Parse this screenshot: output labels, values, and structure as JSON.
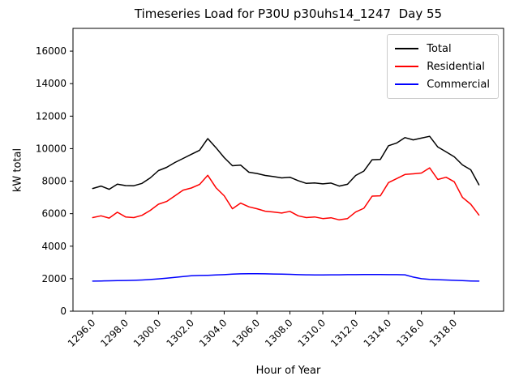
{
  "chart_data": {
    "type": "line",
    "title": "Timeseries Load for P30U p30uhs14_1247  Day 55",
    "xlabel": "Hour of Year",
    "ylabel": "kW total",
    "grid": false,
    "legend_position": "upper-right",
    "xlim": [
      1294.8,
      1321.0
    ],
    "ylim": [
      0,
      17400
    ],
    "yticks": [
      0,
      2000,
      4000,
      6000,
      8000,
      10000,
      12000,
      14000,
      16000
    ],
    "xtick_values": [
      1296,
      1298,
      1300,
      1302,
      1304,
      1306,
      1308,
      1310,
      1312,
      1314,
      1316,
      1318
    ],
    "xtick_labels": [
      "1296.0",
      "1298.0",
      "1300.0",
      "1302.0",
      "1304.0",
      "1306.0",
      "1308.0",
      "1310.0",
      "1312.0",
      "1314.0",
      "1316.0",
      "1318.0"
    ],
    "x": [
      1296.0,
      1296.5,
      1297.0,
      1297.5,
      1298.0,
      1298.5,
      1299.0,
      1299.5,
      1300.0,
      1300.5,
      1301.0,
      1301.5,
      1302.0,
      1302.5,
      1303.0,
      1303.5,
      1304.0,
      1304.5,
      1305.0,
      1305.5,
      1306.0,
      1306.5,
      1307.0,
      1307.5,
      1308.0,
      1308.5,
      1309.0,
      1309.5,
      1310.0,
      1310.5,
      1311.0,
      1311.5,
      1312.0,
      1312.5,
      1313.0,
      1313.5,
      1314.0,
      1314.5,
      1315.0,
      1315.5,
      1316.0,
      1316.5,
      1317.0,
      1317.5,
      1318.0,
      1318.5,
      1319.0,
      1319.5
    ],
    "series": [
      {
        "name": "Total",
        "color": "#000000",
        "values": [
          7550,
          7700,
          7500,
          7820,
          7730,
          7720,
          7860,
          8200,
          8650,
          8850,
          9150,
          9400,
          9650,
          9900,
          10620,
          10060,
          9450,
          8950,
          8990,
          8550,
          8470,
          8350,
          8280,
          8200,
          8240,
          8030,
          7860,
          7890,
          7830,
          7880,
          7700,
          7810,
          8350,
          8620,
          9320,
          9340,
          10180,
          10350,
          10680,
          10540,
          10650,
          10760,
          10100,
          9800,
          9500,
          9000,
          8700,
          7780
        ]
      },
      {
        "name": "Residential",
        "color": "#ff0000",
        "values": [
          5760,
          5870,
          5730,
          6090,
          5800,
          5760,
          5900,
          6200,
          6580,
          6750,
          7100,
          7450,
          7580,
          7800,
          8360,
          7600,
          7100,
          6300,
          6650,
          6420,
          6300,
          6150,
          6100,
          6040,
          6140,
          5870,
          5760,
          5800,
          5700,
          5750,
          5620,
          5700,
          6100,
          6330,
          7080,
          7100,
          7910,
          8160,
          8410,
          8450,
          8500,
          8820,
          8100,
          8240,
          7960,
          7000,
          6580,
          5920
        ]
      },
      {
        "name": "Commercial",
        "color": "#0000ff",
        "values": [
          1850,
          1860,
          1870,
          1880,
          1890,
          1900,
          1920,
          1950,
          1990,
          2030,
          2080,
          2130,
          2180,
          2200,
          2210,
          2230,
          2250,
          2280,
          2300,
          2310,
          2310,
          2300,
          2290,
          2280,
          2270,
          2250,
          2240,
          2230,
          2230,
          2240,
          2240,
          2250,
          2250,
          2260,
          2260,
          2260,
          2250,
          2250,
          2240,
          2100,
          2000,
          1960,
          1940,
          1920,
          1900,
          1880,
          1860,
          1850
        ]
      }
    ]
  }
}
